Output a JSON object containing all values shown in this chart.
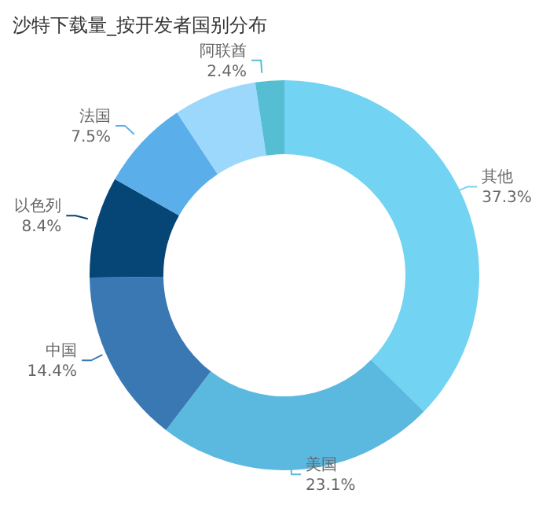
{
  "chart_data": {
    "type": "donut",
    "title": "沙特下载量_按开发者国别分布",
    "categories": [
      "其他",
      "美国",
      "中国",
      "以色列",
      "法国",
      null,
      "阿联酋"
    ],
    "values": [
      37.3,
      23.1,
      14.4,
      8.4,
      7.5,
      6.9,
      2.4
    ],
    "value_labels": [
      "37.3%",
      "23.1%",
      "14.4%",
      "8.4%",
      "7.5%",
      null,
      "2.4%"
    ],
    "colors": [
      "#72d3f2",
      "#5bb8df",
      "#3a78b4",
      "#054677",
      "#5aaeea",
      "#9cd8fb",
      "#55bed3"
    ],
    "legend": false
  }
}
